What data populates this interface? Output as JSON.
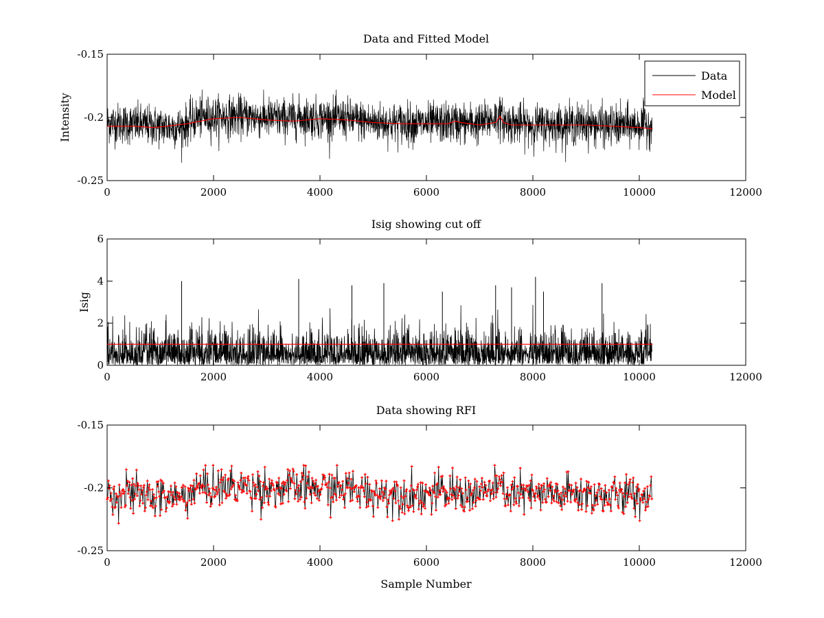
{
  "figure": {
    "background": "#ffffff"
  },
  "chart_data": [
    {
      "type": "line",
      "title": "Data and Fitted Model",
      "xlabel": "",
      "ylabel": "Intensity",
      "xlim": [
        0,
        12000
      ],
      "ylim": [
        -0.25,
        -0.15
      ],
      "y_reversed": true,
      "xticks": [
        0,
        2000,
        4000,
        6000,
        8000,
        10000,
        12000
      ],
      "yticks": [
        -0.15,
        -0.2,
        -0.25
      ],
      "xtick_labels": [
        "0",
        "2000",
        "4000",
        "6000",
        "8000",
        "10000",
        "12000"
      ],
      "ytick_labels": [
        "-0.15",
        "-0.2",
        "-0.25"
      ],
      "legend": {
        "position": "top-right",
        "entries": [
          "Data",
          "Model"
        ]
      },
      "series": [
        {
          "name": "Data",
          "color": "#000000",
          "description_points": {
            "x": [
              0,
              1000,
              1400,
              1700,
              2500,
              3300,
              3600,
              4500,
              5000,
              6000,
              6500,
              7000,
              7350,
              7500,
              8000,
              9000,
              9400,
              10000,
              10250
            ],
            "y": [
              -0.204,
              -0.207,
              -0.208,
              -0.2,
              -0.199,
              -0.201,
              -0.2,
              -0.201,
              -0.204,
              -0.205,
              -0.204,
              -0.205,
              -0.199,
              -0.204,
              -0.206,
              -0.205,
              -0.207,
              -0.206,
              -0.206
            ]
          },
          "range": [
            -0.242,
            -0.178
          ]
        },
        {
          "name": "Model",
          "color": "#ff0000",
          "x": [
            0,
            500,
            900,
            1100,
            1500,
            2000,
            2500,
            3000,
            3500,
            4000,
            4500,
            5000,
            5500,
            6000,
            6400,
            6550,
            6650,
            7000,
            7300,
            7380,
            7450,
            7600,
            8000,
            8500,
            9000,
            9500,
            10000,
            10250
          ],
          "y": [
            -0.207,
            -0.207,
            -0.208,
            -0.207,
            -0.205,
            -0.201,
            -0.2,
            -0.202,
            -0.203,
            -0.201,
            -0.202,
            -0.204,
            -0.205,
            -0.205,
            -0.205,
            -0.203,
            -0.204,
            -0.206,
            -0.204,
            -0.199,
            -0.204,
            -0.206,
            -0.206,
            -0.206,
            -0.206,
            -0.207,
            -0.208,
            -0.209
          ]
        }
      ]
    },
    {
      "type": "line",
      "title": "Isig showing cut off",
      "xlabel": "",
      "ylabel": "Isig",
      "xlim": [
        0,
        12000
      ],
      "ylim": [
        0,
        6
      ],
      "xticks": [
        0,
        2000,
        4000,
        6000,
        8000,
        10000,
        12000
      ],
      "yticks": [
        0,
        2,
        4,
        6
      ],
      "xtick_labels": [
        "0",
        "2000",
        "4000",
        "6000",
        "8000",
        "10000",
        "12000"
      ],
      "ytick_labels": [
        "0",
        "2",
        "4",
        "6"
      ],
      "series": [
        {
          "color": "#000000",
          "peaks": {
            "x": [
              1400,
              3600,
              4600,
              5200,
              6300,
              7300,
              7600,
              8050,
              8200,
              9300
            ],
            "y": [
              4.0,
              4.1,
              3.8,
              3.9,
              3.5,
              3.8,
              3.7,
              4.2,
              3.5,
              3.9
            ]
          },
          "range": [
            0,
            4.2
          ]
        },
        {
          "color": "#ff0000",
          "x": [
            0,
            10250
          ],
          "y": [
            1.0,
            1.0
          ]
        }
      ]
    },
    {
      "type": "line",
      "title": "Data showing RFI",
      "xlabel": "Sample Number",
      "ylabel": "",
      "xlim": [
        0,
        12000
      ],
      "ylim": [
        -0.25,
        -0.15
      ],
      "y_reversed": true,
      "xticks": [
        0,
        2000,
        4000,
        6000,
        8000,
        10000,
        12000
      ],
      "yticks": [
        -0.15,
        -0.2,
        -0.25
      ],
      "xtick_labels": [
        "0",
        "2000",
        "4000",
        "6000",
        "8000",
        "10000",
        "12000"
      ],
      "ytick_labels": [
        "-0.15",
        "-0.2",
        "-0.25"
      ],
      "series": [
        {
          "color": "#000000",
          "range": [
            -0.242,
            -0.182
          ]
        },
        {
          "color": "#ff0000",
          "marker": "+",
          "range": [
            -0.242,
            -0.182
          ]
        }
      ]
    }
  ]
}
